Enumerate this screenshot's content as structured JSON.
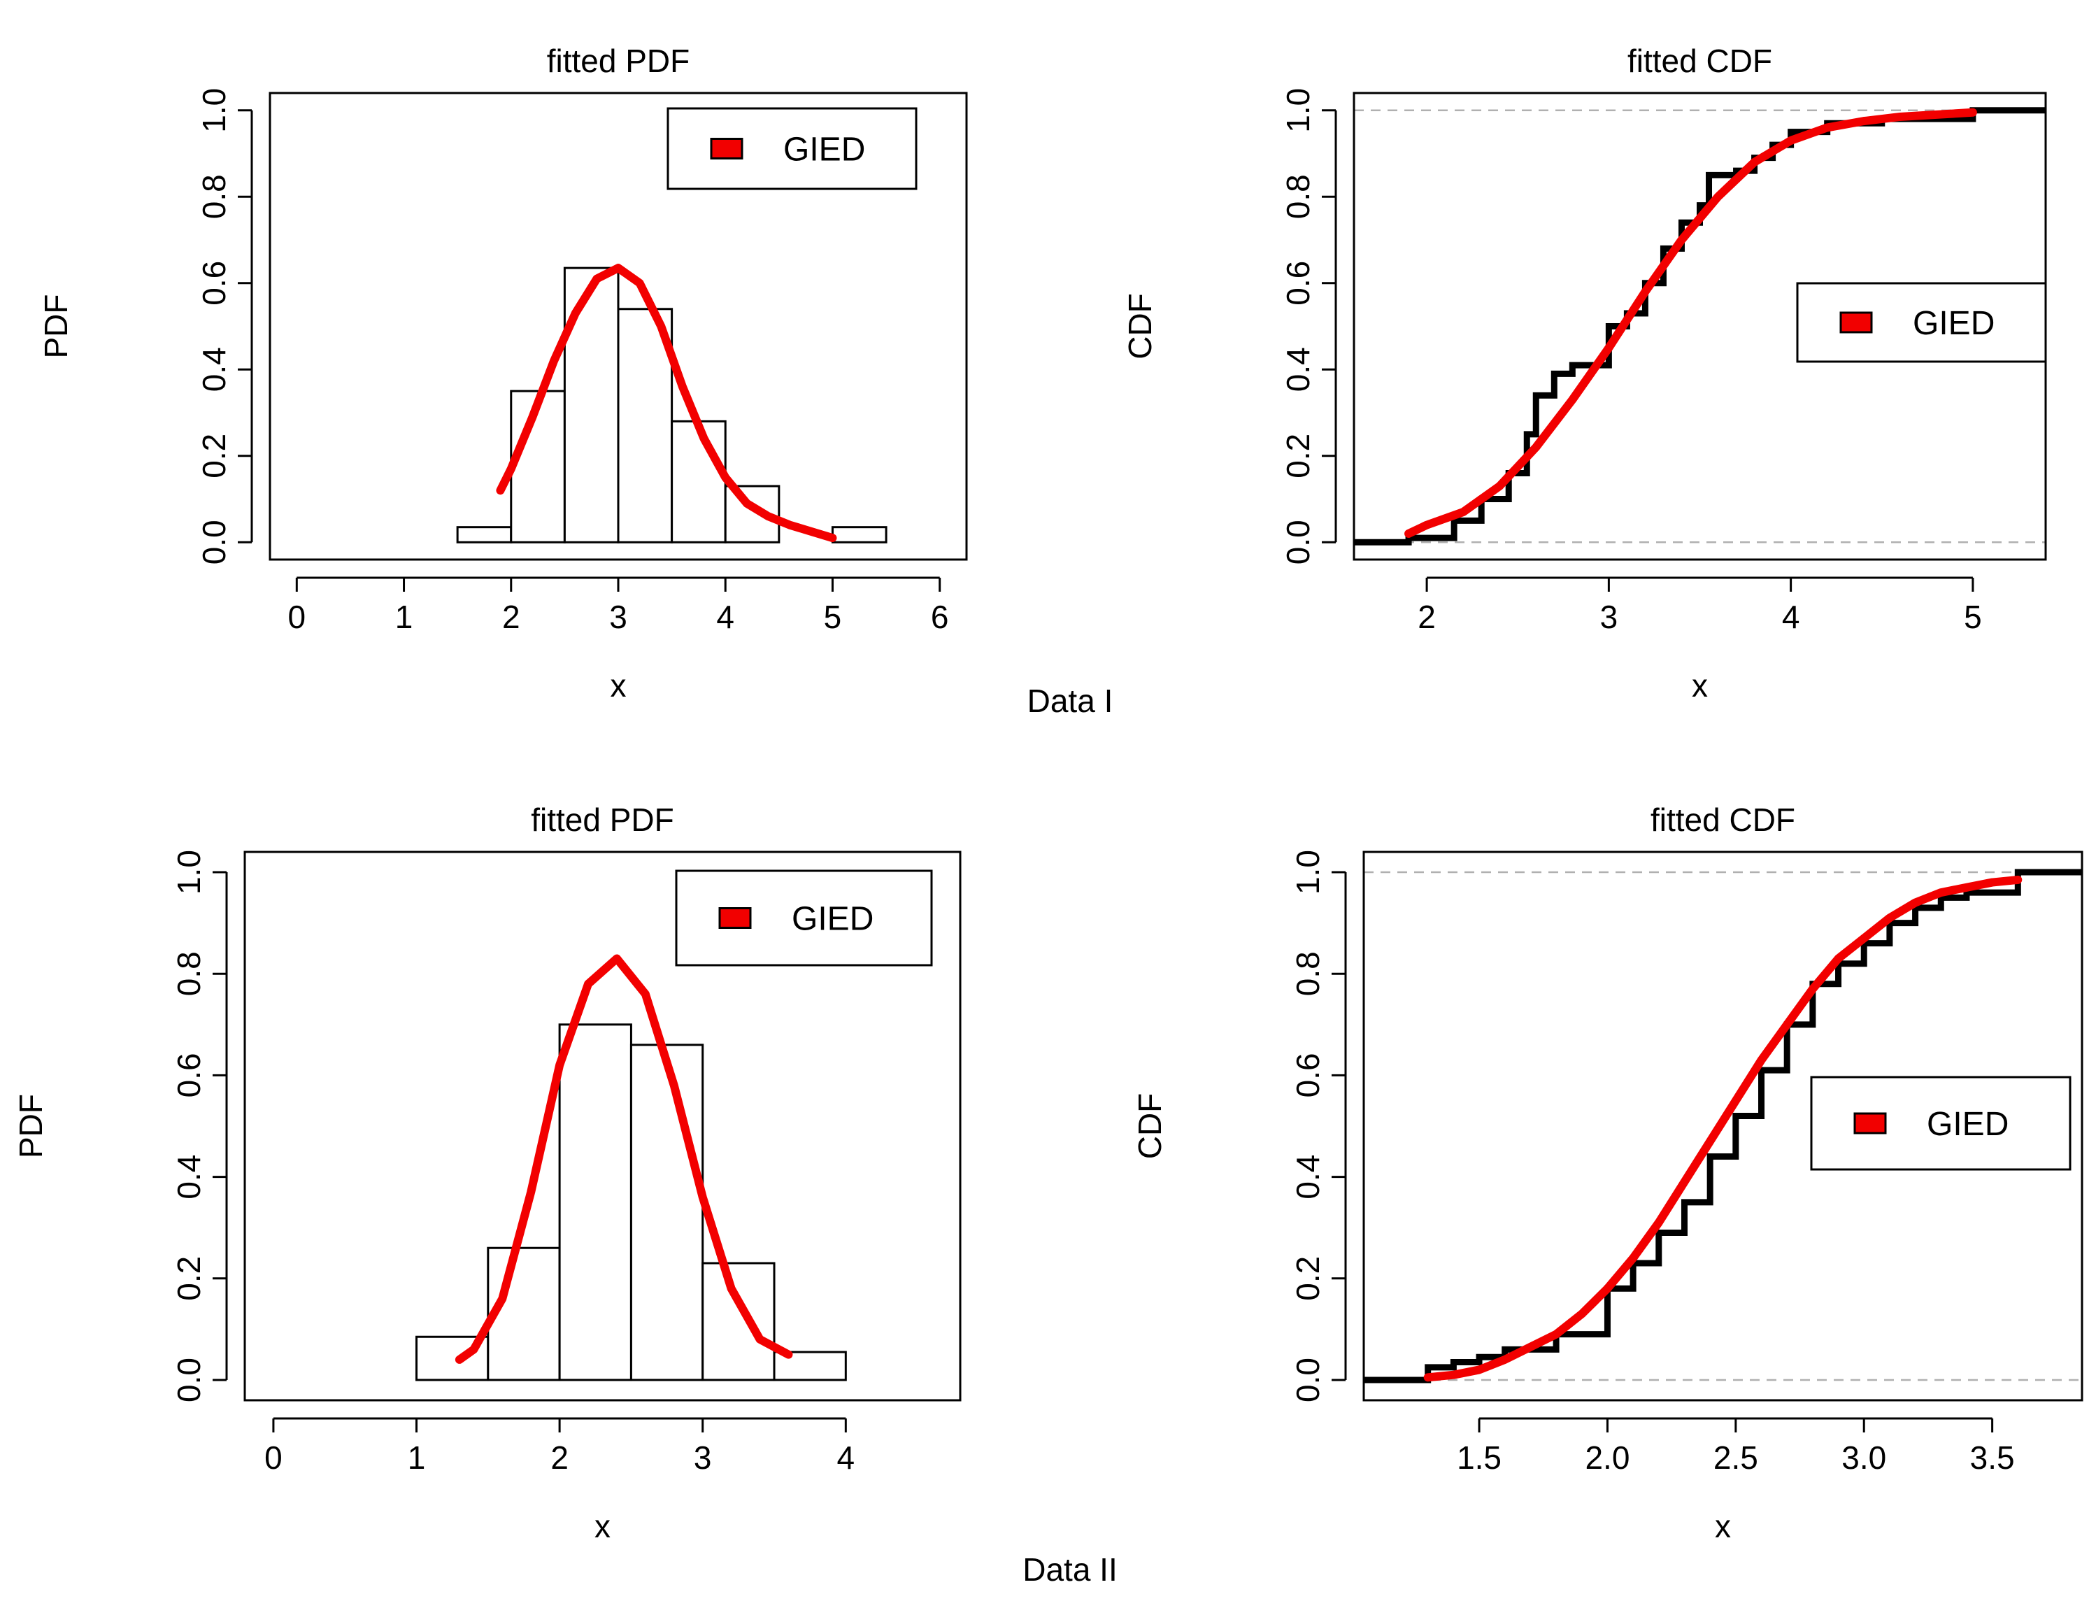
{
  "captions": {
    "data1": "Data I",
    "data2": "Data II"
  },
  "colors": {
    "fit": "#f20000",
    "ecdf": "#000000",
    "refline": "#b0b0b0",
    "hist_fill": "#ffffff"
  },
  "chart_data": [
    {
      "id": "pdf1",
      "type": "histogram+line",
      "title": "fitted PDF",
      "xlabel": "x",
      "ylabel": "PDF",
      "xlim": [
        -0.25,
        6.25
      ],
      "ylim": [
        -0.04,
        1.04
      ],
      "x_ticks": [
        0,
        1,
        2,
        3,
        4,
        5,
        6
      ],
      "x_tick_labels": [
        "0",
        "1",
        "2",
        "3",
        "4",
        "5",
        "6"
      ],
      "y_ticks": [
        0,
        0.2,
        0.4,
        0.6,
        0.8,
        1.0
      ],
      "y_tick_labels": [
        "0.0",
        "0.2",
        "0.4",
        "0.6",
        "0.8",
        "1.0"
      ],
      "legend": {
        "label": "GIED",
        "position": "top-right"
      },
      "bins": [
        {
          "x0": 1.5,
          "x1": 2.0,
          "density": 0.035
        },
        {
          "x0": 2.0,
          "x1": 2.5,
          "density": 0.35
        },
        {
          "x0": 2.5,
          "x1": 3.0,
          "density": 0.635
        },
        {
          "x0": 3.0,
          "x1": 3.5,
          "density": 0.54
        },
        {
          "x0": 3.5,
          "x1": 4.0,
          "density": 0.28
        },
        {
          "x0": 4.0,
          "x1": 4.5,
          "density": 0.13
        },
        {
          "x0": 4.5,
          "x1": 5.0,
          "density": 0.0
        },
        {
          "x0": 5.0,
          "x1": 5.5,
          "density": 0.035
        }
      ],
      "fit_curve": {
        "x": [
          1.9,
          2.0,
          2.2,
          2.4,
          2.6,
          2.8,
          3.0,
          3.2,
          3.4,
          3.6,
          3.8,
          4.0,
          4.2,
          4.4,
          4.6,
          4.8,
          5.0
        ],
        "y": [
          0.12,
          0.17,
          0.29,
          0.42,
          0.53,
          0.61,
          0.635,
          0.6,
          0.5,
          0.36,
          0.24,
          0.15,
          0.09,
          0.06,
          0.04,
          0.025,
          0.01
        ]
      }
    },
    {
      "id": "cdf1",
      "type": "ecdf+line",
      "title": "fitted CDF",
      "xlabel": "x",
      "ylabel": "CDF",
      "xlim": [
        1.6,
        5.4
      ],
      "ylim": [
        -0.04,
        1.04
      ],
      "x_ticks": [
        2,
        3,
        4,
        5
      ],
      "x_tick_labels": [
        "2",
        "3",
        "4",
        "5"
      ],
      "y_ticks": [
        0,
        0.2,
        0.4,
        0.6,
        0.8,
        1.0
      ],
      "y_tick_labels": [
        "0.0",
        "0.2",
        "0.4",
        "0.6",
        "0.8",
        "1.0"
      ],
      "ref_lines": [
        0,
        1
      ],
      "legend": {
        "label": "GIED",
        "position": "center-right"
      },
      "ecdf": {
        "x": [
          1.6,
          1.9,
          2.15,
          2.3,
          2.45,
          2.55,
          2.6,
          2.7,
          2.8,
          3.0,
          3.1,
          3.2,
          3.3,
          3.4,
          3.5,
          3.55,
          3.7,
          3.8,
          3.9,
          4.0,
          4.2,
          4.5,
          5.0,
          5.4
        ],
        "y": [
          0.0,
          0.01,
          0.05,
          0.1,
          0.16,
          0.25,
          0.34,
          0.39,
          0.41,
          0.5,
          0.53,
          0.6,
          0.68,
          0.74,
          0.78,
          0.85,
          0.86,
          0.89,
          0.92,
          0.95,
          0.97,
          0.98,
          1.0,
          1.0
        ]
      },
      "fit_curve": {
        "x": [
          1.9,
          2.0,
          2.2,
          2.4,
          2.6,
          2.8,
          3.0,
          3.2,
          3.4,
          3.6,
          3.8,
          4.0,
          4.2,
          4.4,
          4.6,
          4.8,
          5.0
        ],
        "y": [
          0.02,
          0.04,
          0.07,
          0.13,
          0.22,
          0.33,
          0.45,
          0.58,
          0.7,
          0.8,
          0.88,
          0.93,
          0.96,
          0.975,
          0.985,
          0.99,
          0.995
        ]
      }
    },
    {
      "id": "pdf2",
      "type": "histogram+line",
      "title": "fitted PDF",
      "xlabel": "x",
      "ylabel": "PDF",
      "xlim": [
        -0.2,
        4.8
      ],
      "ylim": [
        -0.04,
        1.04
      ],
      "x_ticks": [
        0,
        1,
        2,
        3,
        4
      ],
      "x_tick_labels": [
        "0",
        "1",
        "2",
        "3",
        "4"
      ],
      "y_ticks": [
        0,
        0.2,
        0.4,
        0.6,
        0.8,
        1.0
      ],
      "y_tick_labels": [
        "0.0",
        "0.2",
        "0.4",
        "0.6",
        "0.8",
        "1.0"
      ],
      "legend": {
        "label": "GIED",
        "position": "top-right"
      },
      "bins": [
        {
          "x0": 1.0,
          "x1": 1.5,
          "density": 0.085
        },
        {
          "x0": 1.5,
          "x1": 2.0,
          "density": 0.26
        },
        {
          "x0": 2.0,
          "x1": 2.5,
          "density": 0.7
        },
        {
          "x0": 2.5,
          "x1": 3.0,
          "density": 0.66
        },
        {
          "x0": 3.0,
          "x1": 3.5,
          "density": 0.23
        },
        {
          "x0": 3.5,
          "x1": 4.0,
          "density": 0.055
        }
      ],
      "fit_curve": {
        "x": [
          1.3,
          1.4,
          1.6,
          1.8,
          2.0,
          2.2,
          2.4,
          2.6,
          2.8,
          3.0,
          3.2,
          3.4,
          3.6
        ],
        "y": [
          0.04,
          0.06,
          0.16,
          0.37,
          0.62,
          0.78,
          0.83,
          0.76,
          0.58,
          0.36,
          0.18,
          0.08,
          0.05
        ]
      }
    },
    {
      "id": "cdf2",
      "type": "ecdf+line",
      "title": "fitted CDF",
      "xlabel": "x",
      "ylabel": "CDF",
      "xlim": [
        1.05,
        3.85
      ],
      "ylim": [
        -0.04,
        1.04
      ],
      "x_ticks": [
        1.5,
        2.0,
        2.5,
        3.0,
        3.5
      ],
      "x_tick_labels": [
        "1.5",
        "2.0",
        "2.5",
        "3.0",
        "3.5"
      ],
      "y_ticks": [
        0,
        0.2,
        0.4,
        0.6,
        0.8,
        1.0
      ],
      "y_tick_labels": [
        "0.0",
        "0.2",
        "0.4",
        "0.6",
        "0.8",
        "1.0"
      ],
      "ref_lines": [
        0,
        1
      ],
      "legend": {
        "label": "GIED",
        "position": "center-right"
      },
      "ecdf": {
        "x": [
          1.05,
          1.3,
          1.4,
          1.5,
          1.6,
          1.8,
          2.0,
          2.1,
          2.2,
          2.3,
          2.4,
          2.5,
          2.6,
          2.7,
          2.8,
          2.9,
          3.0,
          3.1,
          3.2,
          3.3,
          3.4,
          3.6,
          3.85
        ],
        "y": [
          0.0,
          0.025,
          0.035,
          0.045,
          0.06,
          0.09,
          0.18,
          0.23,
          0.29,
          0.35,
          0.44,
          0.52,
          0.61,
          0.7,
          0.78,
          0.82,
          0.86,
          0.9,
          0.93,
          0.95,
          0.96,
          1.0,
          1.0
        ]
      },
      "fit_curve": {
        "x": [
          1.3,
          1.4,
          1.5,
          1.6,
          1.7,
          1.8,
          1.9,
          2.0,
          2.1,
          2.2,
          2.3,
          2.4,
          2.5,
          2.6,
          2.7,
          2.8,
          2.9,
          3.0,
          3.1,
          3.2,
          3.3,
          3.4,
          3.5,
          3.6
        ],
        "y": [
          0.005,
          0.01,
          0.02,
          0.04,
          0.065,
          0.09,
          0.13,
          0.18,
          0.24,
          0.31,
          0.39,
          0.47,
          0.55,
          0.63,
          0.7,
          0.77,
          0.83,
          0.87,
          0.91,
          0.94,
          0.96,
          0.97,
          0.98,
          0.985
        ]
      }
    }
  ]
}
